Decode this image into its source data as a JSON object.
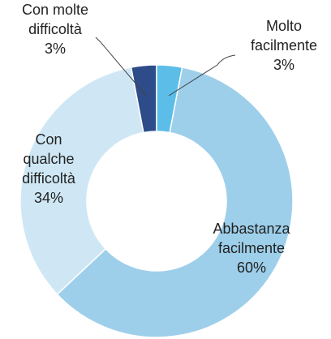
{
  "chart_data": {
    "type": "pie",
    "categories": [
      "Molto facilmente",
      "Abbastanza facilmente",
      "Con qualche difficoltà",
      "Con molte difficoltà"
    ],
    "values": [
      3,
      60,
      34,
      3
    ],
    "value_labels": [
      "3%",
      "60%",
      "34%",
      "3%"
    ],
    "colors": [
      "#5bbde8",
      "#9dcfea",
      "#cfe7f5",
      "#2e4b8a"
    ],
    "donut": true
  }
}
